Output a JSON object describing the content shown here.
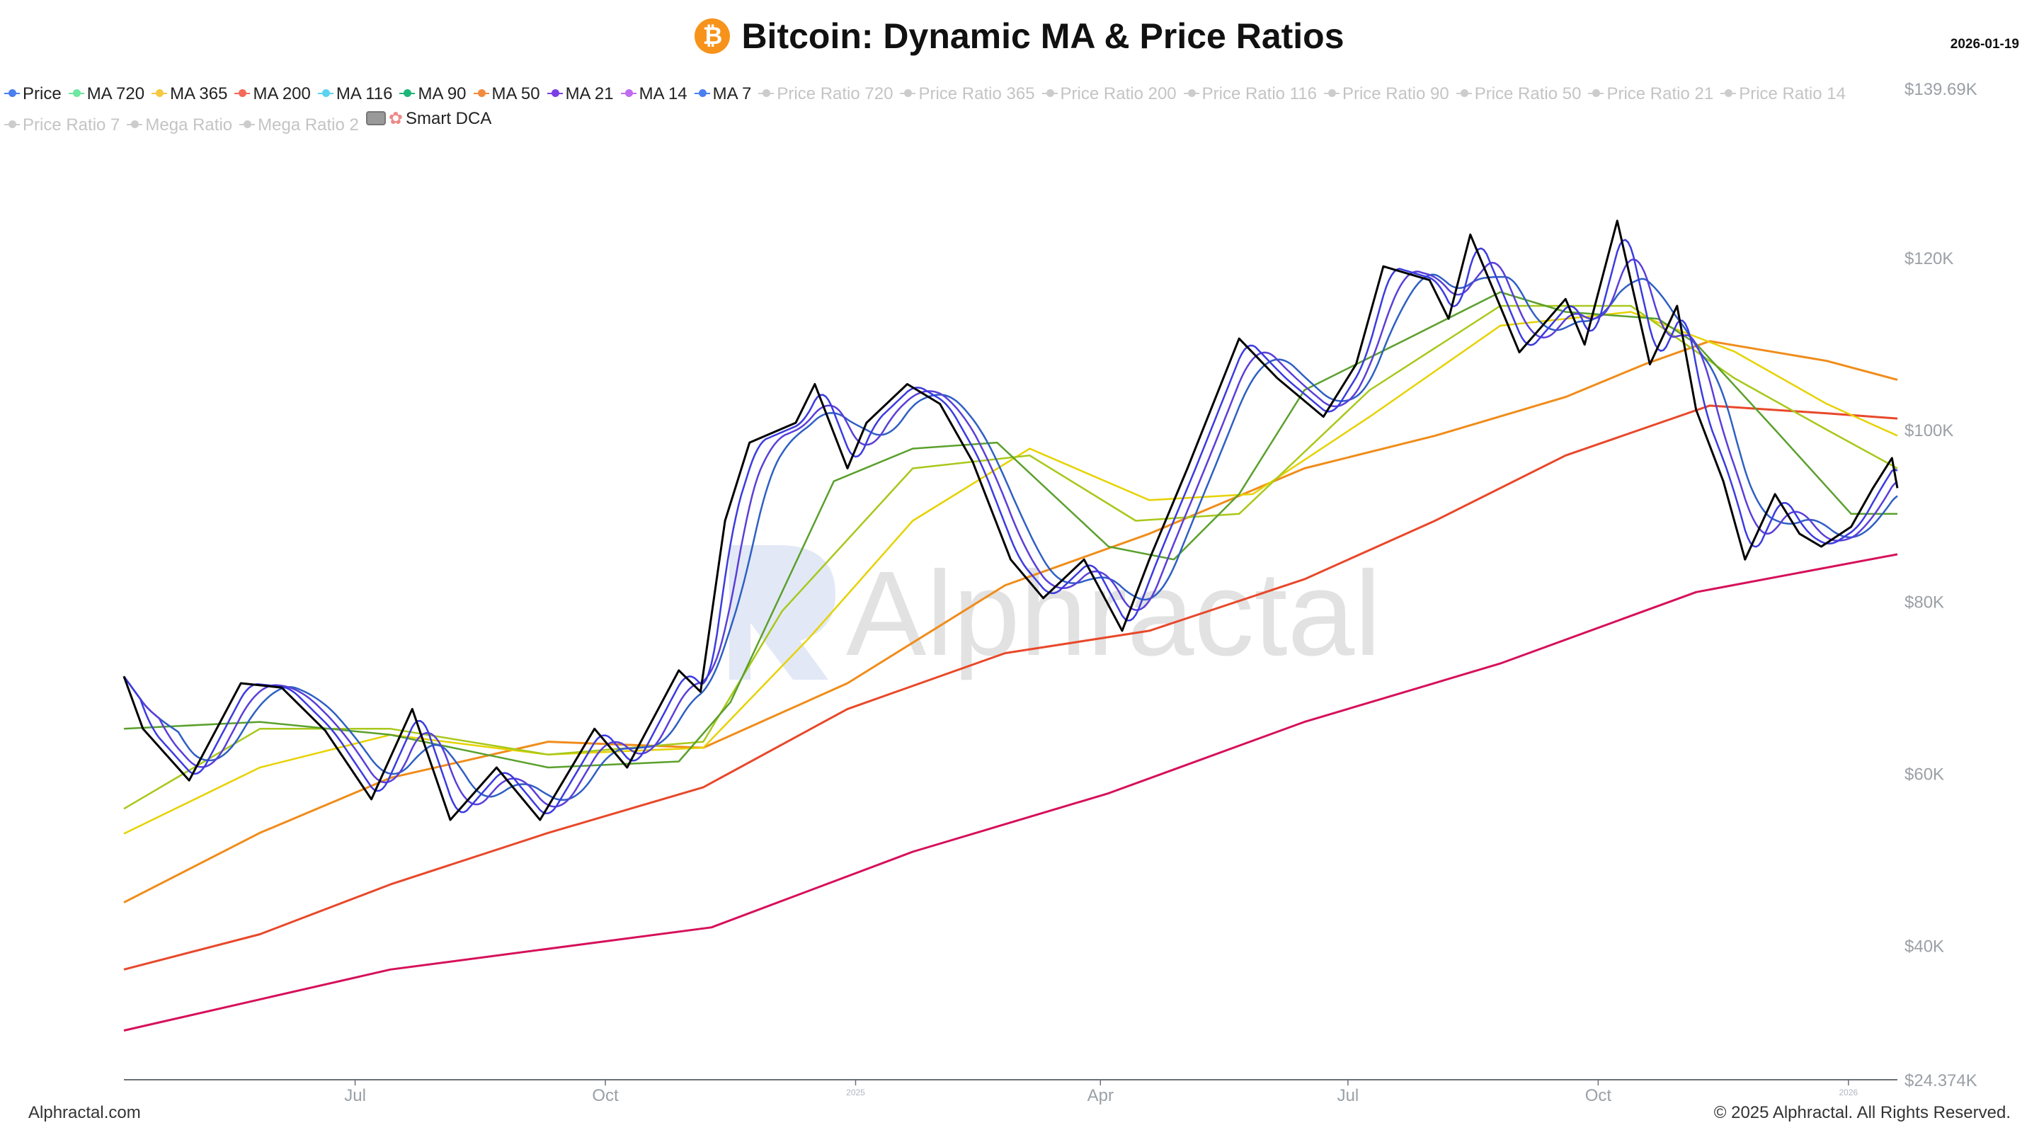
{
  "header": {
    "title": "Bitcoin: Dynamic MA & Price Ratios",
    "icon": "bitcoin-icon",
    "date": "2026-01-19"
  },
  "legend": [
    {
      "label": "Price",
      "color": "#4a7ff0",
      "active": true
    },
    {
      "label": "MA 720",
      "color": "#6ee7a0",
      "active": true
    },
    {
      "label": "MA 365",
      "color": "#f5c842",
      "active": true
    },
    {
      "label": "MA 200",
      "color": "#f26b5b",
      "active": true
    },
    {
      "label": "MA 116",
      "color": "#5bd3f0",
      "active": true
    },
    {
      "label": "MA 90",
      "color": "#1db57a",
      "active": true
    },
    {
      "label": "MA 50",
      "color": "#f28b3c",
      "active": true
    },
    {
      "label": "MA 21",
      "color": "#7b3fe4",
      "active": true
    },
    {
      "label": "MA 14",
      "color": "#c06cf0",
      "active": true
    },
    {
      "label": "MA 7",
      "color": "#4a7ff0",
      "active": true
    },
    {
      "label": "Price Ratio 720",
      "color": "#cccccc",
      "active": false
    },
    {
      "label": "Price Ratio 365",
      "color": "#cccccc",
      "active": false
    },
    {
      "label": "Price Ratio 200",
      "color": "#cccccc",
      "active": false
    },
    {
      "label": "Price Ratio 116",
      "color": "#cccccc",
      "active": false
    },
    {
      "label": "Price Ratio 90",
      "color": "#cccccc",
      "active": false
    },
    {
      "label": "Price Ratio 50",
      "color": "#cccccc",
      "active": false
    },
    {
      "label": "Price Ratio 21",
      "color": "#cccccc",
      "active": false
    },
    {
      "label": "Price Ratio 14",
      "color": "#cccccc",
      "active": false
    },
    {
      "label": "Price Ratio 7",
      "color": "#cccccc",
      "active": false
    },
    {
      "label": "Mega Ratio",
      "color": "#cccccc",
      "active": false
    },
    {
      "label": "Mega Ratio 2",
      "color": "#cccccc",
      "active": false
    },
    {
      "label": "Smart DCA",
      "color": "#999999",
      "active": true,
      "icon": "brain-icon"
    }
  ],
  "watermark": "Alphractal",
  "footer": {
    "left": "Alphractal.com",
    "right": "© 2025 Alphractal. All Rights Reserved."
  },
  "chart_data": {
    "type": "line",
    "title": "Bitcoin: Dynamic MA & Price Ratios",
    "xlim": [
      "2024-04-07",
      "2026-01-19"
    ],
    "ylim": [
      24.374,
      139.69
    ],
    "y_unit": "K USD",
    "grid": false,
    "legend_placement": "top-left",
    "x_ticks": [
      {
        "date": "2024-07-01",
        "label": "Jul"
      },
      {
        "date": "2024-10-01",
        "label": "Oct"
      },
      {
        "date": "2025-01-01",
        "label": "2025",
        "year": true
      },
      {
        "date": "2025-04-01",
        "label": "Apr"
      },
      {
        "date": "2025-07-01",
        "label": "Jul"
      },
      {
        "date": "2025-10-01",
        "label": "Oct"
      },
      {
        "date": "2026-01-01",
        "label": "2026",
        "year": true
      }
    ],
    "y_ticks": [
      {
        "value": 139.69,
        "label": "$139.69K"
      },
      {
        "value": 120,
        "label": "$120K"
      },
      {
        "value": 100,
        "label": "$100K"
      },
      {
        "value": 80,
        "label": "$80K"
      },
      {
        "value": 60,
        "label": "$60K"
      },
      {
        "value": 40,
        "label": "$40K"
      },
      {
        "value": 24.374,
        "label": "$24.374K"
      }
    ],
    "series": [
      {
        "name": "Price",
        "color": "#000000",
        "width": 3,
        "points": [
          [
            "2024-04-07",
            71.3
          ],
          [
            "2024-04-14",
            65.2
          ],
          [
            "2024-05-01",
            59.2
          ],
          [
            "2024-05-20",
            70.5
          ],
          [
            "2024-06-04",
            70.0
          ],
          [
            "2024-06-20",
            65.0
          ],
          [
            "2024-07-07",
            57.0
          ],
          [
            "2024-07-22",
            67.5
          ],
          [
            "2024-08-05",
            54.6
          ],
          [
            "2024-08-22",
            60.7
          ],
          [
            "2024-09-07",
            54.6
          ],
          [
            "2024-09-27",
            65.2
          ],
          [
            "2024-10-09",
            60.7
          ],
          [
            "2024-10-28",
            72.0
          ],
          [
            "2024-11-05",
            69.5
          ],
          [
            "2024-11-14",
            89.4
          ],
          [
            "2024-11-23",
            98.5
          ],
          [
            "2024-12-10",
            100.8
          ],
          [
            "2024-12-17",
            105.3
          ],
          [
            "2024-12-29",
            95.5
          ],
          [
            "2025-01-05",
            100.8
          ],
          [
            "2025-01-20",
            105.3
          ],
          [
            "2025-02-01",
            103.0
          ],
          [
            "2025-02-13",
            96.3
          ],
          [
            "2025-02-27",
            84.9
          ],
          [
            "2025-03-11",
            80.4
          ],
          [
            "2025-03-26",
            84.9
          ],
          [
            "2025-04-09",
            76.6
          ],
          [
            "2025-04-19",
            84.9
          ],
          [
            "2025-05-03",
            95.5
          ],
          [
            "2025-05-22",
            110.6
          ],
          [
            "2025-06-05",
            106.0
          ],
          [
            "2025-06-22",
            101.5
          ],
          [
            "2025-07-04",
            107.6
          ],
          [
            "2025-07-14",
            119.0
          ],
          [
            "2025-07-31",
            117.4
          ],
          [
            "2025-08-07",
            112.9
          ],
          [
            "2025-08-15",
            122.7
          ],
          [
            "2025-09-02",
            109.0
          ],
          [
            "2025-09-19",
            115.2
          ],
          [
            "2025-09-26",
            109.9
          ],
          [
            "2025-10-08",
            124.3
          ],
          [
            "2025-10-20",
            107.6
          ],
          [
            "2025-10-30",
            114.4
          ],
          [
            "2025-11-06",
            102.3
          ],
          [
            "2025-11-16",
            94.0
          ],
          [
            "2025-11-24",
            84.9
          ],
          [
            "2025-12-05",
            92.5
          ],
          [
            "2025-12-14",
            87.9
          ],
          [
            "2025-12-22",
            86.4
          ],
          [
            "2026-01-02",
            88.7
          ],
          [
            "2026-01-10",
            93.2
          ],
          [
            "2026-01-17",
            96.7
          ],
          [
            "2026-01-19",
            93.2
          ]
        ]
      },
      {
        "name": "MA 720",
        "color": "#d6105a",
        "width": 3,
        "points": [
          [
            "2024-04-07",
            30.1
          ],
          [
            "2024-07-14",
            37.2
          ],
          [
            "2024-11-09",
            42.1
          ],
          [
            "2025-01-22",
            50.9
          ],
          [
            "2025-04-04",
            57.7
          ],
          [
            "2025-06-15",
            66.0
          ],
          [
            "2025-08-26",
            72.8
          ],
          [
            "2025-11-06",
            81.1
          ],
          [
            "2026-01-19",
            85.5
          ]
        ]
      },
      {
        "name": "MA 365",
        "color": "#e8482a",
        "width": 3,
        "points": [
          [
            "2024-04-07",
            37.2
          ],
          [
            "2024-05-27",
            41.3
          ],
          [
            "2024-07-14",
            47.1
          ],
          [
            "2024-09-10",
            53.1
          ],
          [
            "2024-11-06",
            58.4
          ],
          [
            "2024-12-29",
            67.5
          ],
          [
            "2025-02-25",
            74.0
          ],
          [
            "2025-04-19",
            76.6
          ],
          [
            "2025-06-15",
            82.6
          ],
          [
            "2025-08-02",
            89.4
          ],
          [
            "2025-09-19",
            97.0
          ],
          [
            "2025-11-11",
            102.8
          ],
          [
            "2025-12-24",
            101.9
          ],
          [
            "2026-01-19",
            101.3
          ]
        ]
      },
      {
        "name": "MA 200",
        "color": "#f08c1a",
        "width": 3,
        "points": [
          [
            "2024-04-07",
            45.0
          ],
          [
            "2024-05-27",
            53.1
          ],
          [
            "2024-07-14",
            59.5
          ],
          [
            "2024-09-10",
            63.7
          ],
          [
            "2024-11-06",
            63.0
          ],
          [
            "2024-12-29",
            70.5
          ],
          [
            "2025-02-25",
            81.9
          ],
          [
            "2025-04-19",
            87.9
          ],
          [
            "2025-06-15",
            95.5
          ],
          [
            "2025-08-02",
            99.3
          ],
          [
            "2025-09-19",
            103.8
          ],
          [
            "2025-10-18",
            107.6
          ],
          [
            "2025-11-11",
            110.3
          ],
          [
            "2025-12-24",
            108.0
          ],
          [
            "2026-01-19",
            105.8
          ]
        ]
      },
      {
        "name": "MA 116",
        "color": "#e6d200",
        "width": 2.5,
        "points": [
          [
            "2024-04-07",
            53.0
          ],
          [
            "2024-05-27",
            60.7
          ],
          [
            "2024-07-14",
            64.5
          ],
          [
            "2024-09-10",
            62.2
          ],
          [
            "2024-11-06",
            63.0
          ],
          [
            "2024-12-15",
            75.8
          ],
          [
            "2025-01-22",
            89.4
          ],
          [
            "2025-03-06",
            97.8
          ],
          [
            "2025-04-19",
            91.8
          ],
          [
            "2025-05-27",
            92.5
          ],
          [
            "2025-07-09",
            101.5
          ],
          [
            "2025-08-26",
            112.1
          ],
          [
            "2025-10-13",
            113.7
          ],
          [
            "2025-11-20",
            109.1
          ],
          [
            "2025-12-24",
            103.0
          ],
          [
            "2026-01-19",
            99.3
          ]
        ]
      },
      {
        "name": "MA 90",
        "color": "#a8c81a",
        "width": 2.5,
        "points": [
          [
            "2024-04-07",
            55.9
          ],
          [
            "2024-05-27",
            65.2
          ],
          [
            "2024-07-14",
            65.2
          ],
          [
            "2024-09-10",
            62.2
          ],
          [
            "2024-11-06",
            63.7
          ],
          [
            "2024-12-05",
            78.9
          ],
          [
            "2025-01-22",
            95.5
          ],
          [
            "2025-03-06",
            97.0
          ],
          [
            "2025-04-14",
            89.4
          ],
          [
            "2025-05-22",
            90.2
          ],
          [
            "2025-07-09",
            104.6
          ],
          [
            "2025-08-26",
            114.4
          ],
          [
            "2025-10-13",
            114.4
          ],
          [
            "2025-11-20",
            106.0
          ],
          [
            "2025-12-24",
            100.0
          ],
          [
            "2026-01-19",
            95.5
          ]
        ]
      },
      {
        "name": "MA 50",
        "color": "#5aa02c",
        "width": 2.5,
        "points": [
          [
            "2024-04-07",
            65.2
          ],
          [
            "2024-05-27",
            66.0
          ],
          [
            "2024-07-14",
            64.5
          ],
          [
            "2024-09-10",
            60.7
          ],
          [
            "2024-10-28",
            61.4
          ],
          [
            "2024-11-16",
            68.3
          ],
          [
            "2024-12-24",
            94.0
          ],
          [
            "2025-01-22",
            97.8
          ],
          [
            "2025-02-22",
            98.5
          ],
          [
            "2025-04-04",
            86.4
          ],
          [
            "2025-04-28",
            84.9
          ],
          [
            "2025-05-22",
            92.5
          ],
          [
            "2025-06-15",
            104.6
          ],
          [
            "2025-07-23",
            110.6
          ],
          [
            "2025-08-26",
            116.0
          ],
          [
            "2025-09-19",
            113.7
          ],
          [
            "2025-10-23",
            112.9
          ],
          [
            "2025-11-06",
            110.0
          ],
          [
            "2025-12-05",
            100.0
          ],
          [
            "2026-01-02",
            90.2
          ],
          [
            "2026-01-19",
            90.2
          ]
        ]
      }
    ],
    "computed_series": [
      {
        "name": "MA 21",
        "color": "#2e5fc4",
        "window": 21
      },
      {
        "name": "MA 14",
        "color": "#5a3fd8",
        "window": 14
      },
      {
        "name": "MA 7",
        "color": "#3b3be0",
        "window": 7
      }
    ]
  }
}
